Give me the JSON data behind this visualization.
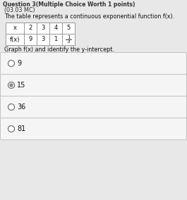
{
  "title_line1": "Question 3(Multiple Choice Worth 1 points)",
  "title_line2": "(03.03 MC)",
  "description": "The table represents a continuous exponential function f(x).",
  "table_x_label": "x",
  "table_fx_label": "f(x)",
  "table_x_values": [
    "2",
    "3",
    "4",
    "5"
  ],
  "table_fx_values": [
    "9",
    "3",
    "1",
    "1/3"
  ],
  "graph_label": "Graph f(x) and identify the y-intercept.",
  "options": [
    "9",
    "15",
    "36",
    "81"
  ],
  "selected_option": 1,
  "bg_color": "#e8e8e8",
  "option_bg": "#f5f5f5",
  "option_border": "#bbbbbb",
  "text_color": "#111111",
  "title_color": "#333333",
  "table_border": "#999999"
}
